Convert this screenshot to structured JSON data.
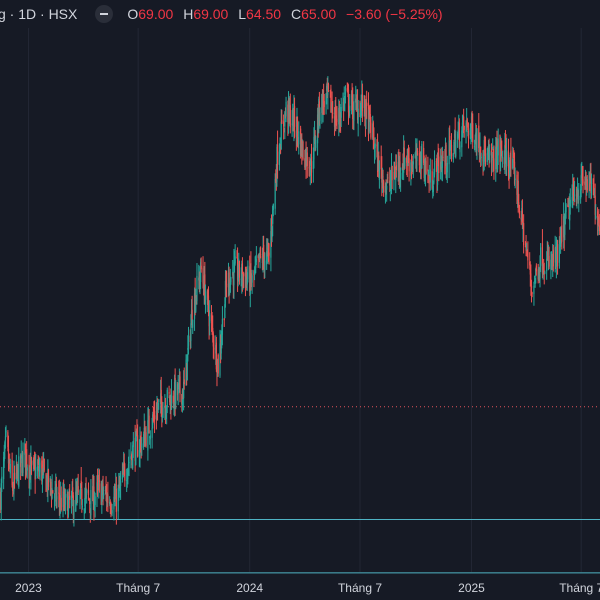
{
  "header": {
    "symbol_title": "g · 1D · HSX",
    "open_label": "O",
    "open_value": "69.00",
    "high_label": "H",
    "high_value": "69.00",
    "low_label": "L",
    "low_value": "64.50",
    "close_label": "C",
    "close_value": "65.00",
    "change": "−3.60 (−5.25%)"
  },
  "colors": {
    "background": "#161a25",
    "grid": "#232734",
    "up": "#26a69a",
    "down": "#ef5350",
    "hline": "#4fb3c4",
    "dotted": "#e0525b",
    "text": "#d1d4dc"
  },
  "chart_data": {
    "type": "candlestick",
    "x_tick_labels": [
      "2023",
      "Tháng 7",
      "2024",
      "Tháng 7",
      "2025",
      "Tháng 7"
    ],
    "x_tick_dates": [
      "2023-01-01",
      "2023-07-01",
      "2024-01-01",
      "2024-07-01",
      "2025-01-01",
      "2025-07-01"
    ],
    "x_range": [
      "2022-11-15",
      "2025-08-01"
    ],
    "y_range_price": [
      40,
      85
    ],
    "horizontal_lines": [
      {
        "style": "solid",
        "color": "#4fb3c4",
        "price": 44.0
      },
      {
        "style": "solid",
        "color": "#4fb3c4",
        "price": 39.5
      },
      {
        "style": "dotted",
        "color": "#e0525b",
        "price": 53.5
      }
    ],
    "close_series_approx": [
      [
        "2022-11-16",
        46.0
      ],
      [
        "2022-11-25",
        50.5
      ],
      [
        "2022-12-05",
        46.5
      ],
      [
        "2022-12-15",
        48.0
      ],
      [
        "2022-12-26",
        49.5
      ],
      [
        "2023-01-06",
        48.0
      ],
      [
        "2023-01-20",
        48.2
      ],
      [
        "2023-02-03",
        47.0
      ],
      [
        "2023-02-17",
        45.8
      ],
      [
        "2023-03-03",
        45.2
      ],
      [
        "2023-03-17",
        45.5
      ],
      [
        "2023-03-31",
        46.0
      ],
      [
        "2023-04-14",
        45.6
      ],
      [
        "2023-04-28",
        46.5
      ],
      [
        "2023-05-12",
        45.8
      ],
      [
        "2023-05-26",
        45.6
      ],
      [
        "2023-06-09",
        48.0
      ],
      [
        "2023-06-23",
        50.0
      ],
      [
        "2023-07-07",
        50.5
      ],
      [
        "2023-07-21",
        52.0
      ],
      [
        "2023-08-04",
        53.5
      ],
      [
        "2023-08-18",
        54.0
      ],
      [
        "2023-08-31",
        54.5
      ],
      [
        "2023-09-15",
        55.0
      ],
      [
        "2023-09-29",
        62.0
      ],
      [
        "2023-10-13",
        65.0
      ],
      [
        "2023-10-27",
        61.0
      ],
      [
        "2023-11-10",
        57.0
      ],
      [
        "2023-11-24",
        64.0
      ],
      [
        "2023-12-08",
        65.0
      ],
      [
        "2023-12-22",
        64.5
      ],
      [
        "2024-01-05",
        64.0
      ],
      [
        "2024-01-19",
        66.0
      ],
      [
        "2024-02-02",
        66.2
      ],
      [
        "2024-02-16",
        75.0
      ],
      [
        "2024-03-01",
        78.5
      ],
      [
        "2024-03-15",
        77.5
      ],
      [
        "2024-03-29",
        75.0
      ],
      [
        "2024-04-12",
        74.0
      ],
      [
        "2024-04-26",
        79.0
      ],
      [
        "2024-05-10",
        79.5
      ],
      [
        "2024-05-24",
        77.5
      ],
      [
        "2024-06-07",
        79.5
      ],
      [
        "2024-06-21",
        78.5
      ],
      [
        "2024-07-05",
        79.0
      ],
      [
        "2024-07-19",
        77.0
      ],
      [
        "2024-08-02",
        73.5
      ],
      [
        "2024-08-16",
        72.0
      ],
      [
        "2024-08-30",
        73.5
      ],
      [
        "2024-09-13",
        74.5
      ],
      [
        "2024-09-27",
        74.0
      ],
      [
        "2024-10-11",
        74.5
      ],
      [
        "2024-10-25",
        72.5
      ],
      [
        "2024-11-08",
        74.0
      ],
      [
        "2024-11-22",
        74.5
      ],
      [
        "2024-12-06",
        76.0
      ],
      [
        "2024-12-20",
        77.0
      ],
      [
        "2025-01-03",
        76.8
      ],
      [
        "2025-01-17",
        75.5
      ],
      [
        "2025-01-31",
        74.0
      ],
      [
        "2025-02-14",
        75.0
      ],
      [
        "2025-02-28",
        74.5
      ],
      [
        "2025-03-14",
        73.0
      ],
      [
        "2025-03-28",
        68.0
      ],
      [
        "2025-04-11",
        63.5
      ],
      [
        "2025-04-25",
        66.0
      ],
      [
        "2025-05-09",
        65.5
      ],
      [
        "2025-05-23",
        66.0
      ],
      [
        "2025-06-06",
        69.5
      ],
      [
        "2025-06-20",
        71.5
      ],
      [
        "2025-07-04",
        72.5
      ],
      [
        "2025-07-18",
        72.0
      ],
      [
        "2025-07-31",
        69.0
      ]
    ]
  }
}
